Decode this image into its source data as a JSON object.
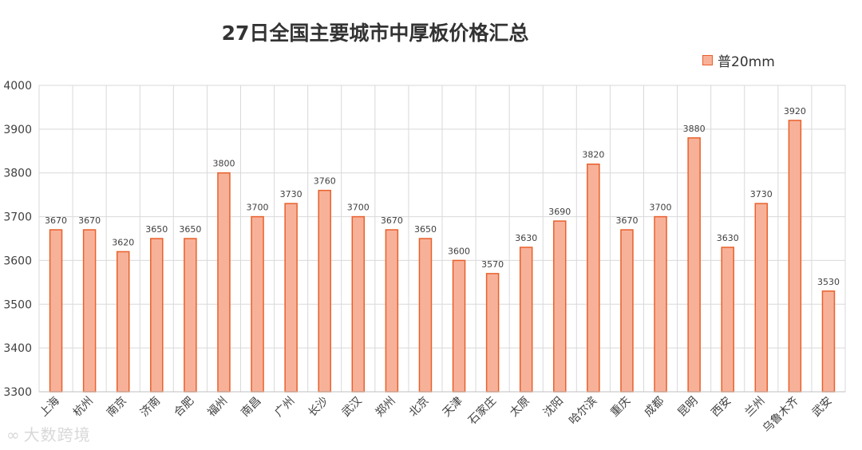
{
  "chart_data": {
    "type": "bar",
    "title": "27日全国主要城市中厚板价格汇总",
    "legend_position": "top-right",
    "grid": true,
    "ylim": [
      3300,
      4000
    ],
    "yticks": [
      3300,
      3400,
      3500,
      3600,
      3700,
      3800,
      3900,
      4000
    ],
    "categories": [
      "上海",
      "杭州",
      "南京",
      "济南",
      "合肥",
      "福州",
      "南昌",
      "广州",
      "长沙",
      "武汉",
      "郑州",
      "北京",
      "天津",
      "石家庄",
      "太原",
      "沈阳",
      "哈尔滨",
      "重庆",
      "成都",
      "昆明",
      "西安",
      "兰州",
      "乌鲁木齐",
      "武安"
    ],
    "series": [
      {
        "name": "普20mm",
        "values": [
          3670,
          3670,
          3620,
          3650,
          3650,
          3800,
          3700,
          3730,
          3760,
          3700,
          3670,
          3650,
          3600,
          3570,
          3630,
          3690,
          3820,
          3670,
          3700,
          3880,
          3630,
          3730,
          3920,
          3530
        ]
      }
    ],
    "colors": {
      "bar_fill": "#f8b199",
      "bar_stroke": "#e8612c",
      "grid": "#d9d9d9",
      "text": "#404040"
    }
  },
  "watermark": {
    "logo_icon": "infinity-logo-icon",
    "logo_glyph": "∞",
    "text": "大数跨境"
  }
}
